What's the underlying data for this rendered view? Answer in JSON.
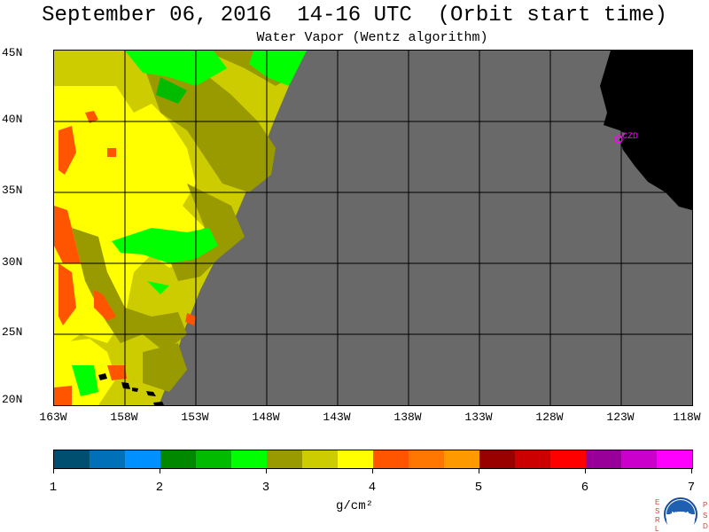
{
  "header": {
    "title": "September 06, 2016  14-16 UTC  (Orbit start time)",
    "subtitle": "Water Vapor (Wentz algorithm)"
  },
  "map": {
    "lat_labels": [
      "45N",
      "40N",
      "35N",
      "30N",
      "25N",
      "20N"
    ],
    "lon_labels": [
      "163W",
      "158W",
      "153W",
      "148W",
      "143W",
      "138W",
      "133W",
      "128W",
      "123W",
      "118W"
    ],
    "station_label": "CZD",
    "colors": {
      "no_data": "#696969",
      "land": "#000000",
      "station": "#ff00ff"
    }
  },
  "colorbar": {
    "colors": [
      "#004f70",
      "#0070b8",
      "#0090ff",
      "#008800",
      "#00bb00",
      "#00ff00",
      "#999900",
      "#cccc00",
      "#ffff00",
      "#ff5500",
      "#ff7700",
      "#ff9900",
      "#990000",
      "#cc0000",
      "#ff0000",
      "#990099",
      "#cc00cc",
      "#ff00ff"
    ],
    "tick_labels": [
      "1",
      "2",
      "3",
      "4",
      "5",
      "6",
      "7"
    ],
    "units": "g/cm²"
  },
  "logo": {
    "left_letters": [
      "E",
      "S",
      "R",
      "L"
    ],
    "right_letters": [
      "P",
      "S",
      "D"
    ],
    "center_text": "NOAA"
  }
}
